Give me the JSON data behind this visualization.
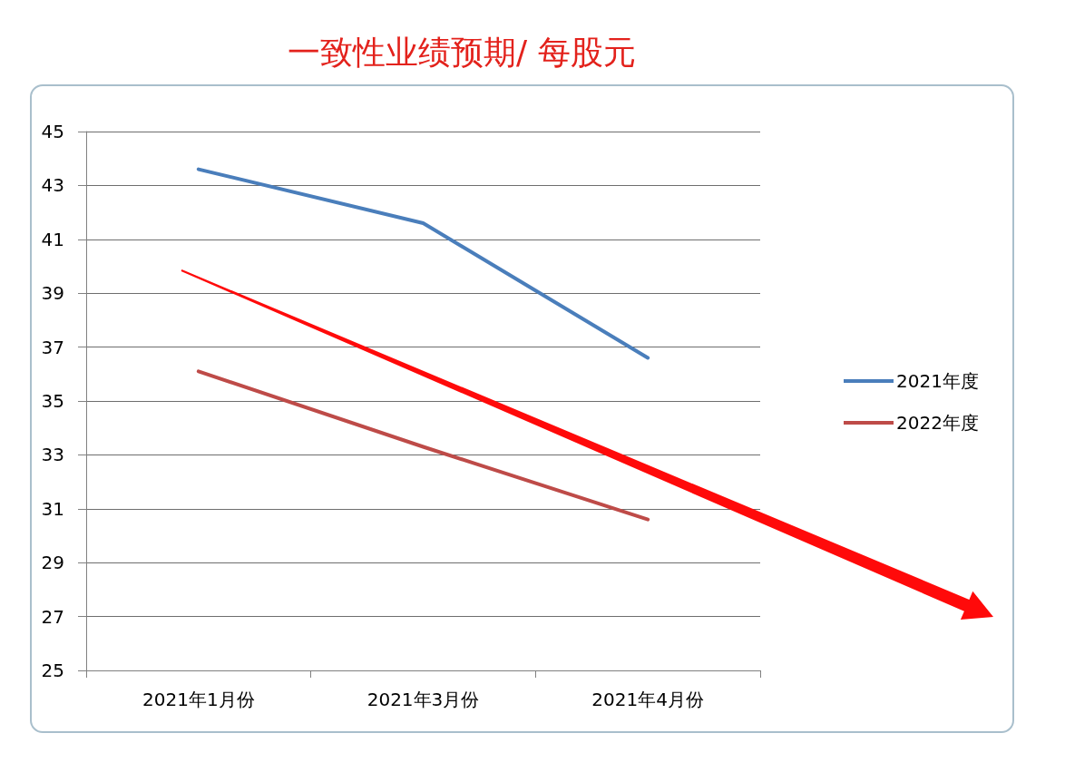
{
  "chart_data": {
    "type": "line",
    "title": "一致性业绩预期/ 每股元",
    "categories": [
      "2021年1月份",
      "2021年3月份",
      "2021年4月份"
    ],
    "series": [
      {
        "name": "2021年度",
        "color": "#4a7ebb",
        "values": [
          43.6,
          41.6,
          36.6
        ]
      },
      {
        "name": "2022年度",
        "color": "#be4b48",
        "values": [
          36.1,
          33.3,
          30.6
        ]
      }
    ],
    "ylim": [
      25,
      45
    ],
    "yticks": [
      25,
      27,
      29,
      31,
      33,
      35,
      37,
      39,
      41,
      43,
      45
    ],
    "grid": "y",
    "legend": "right",
    "marker": "none",
    "line_style": "solid"
  }
}
